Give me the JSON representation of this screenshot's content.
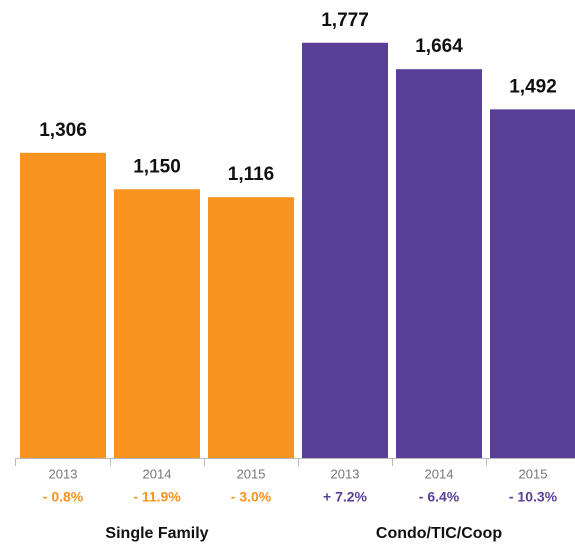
{
  "chart_data": {
    "type": "bar",
    "categories": [
      "2013",
      "2014",
      "2015"
    ],
    "ylim": [
      0,
      1960
    ],
    "series": [
      {
        "name": "Single Family",
        "color": "#f7931e",
        "values": [
          1306,
          1150,
          1116
        ],
        "value_labels": [
          "1,306",
          "1,150",
          "1,116"
        ],
        "changes": [
          "- 0.8%",
          "- 11.9%",
          "- 3.0%"
        ]
      },
      {
        "name": "Condo/TIC/Coop",
        "color": "#5a3f99",
        "values": [
          1777,
          1664,
          1492
        ],
        "value_labels": [
          "1,777",
          "1,664",
          "1,492"
        ],
        "changes": [
          "+ 7.2%",
          "- 6.4%",
          "- 10.3%"
        ]
      }
    ]
  }
}
